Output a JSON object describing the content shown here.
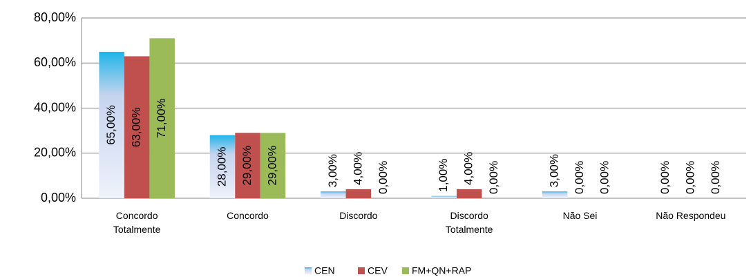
{
  "chart_data": {
    "type": "bar",
    "categories": [
      "Concordo\nTotalmente",
      "Concordo",
      "Discordo",
      "Discordo\nTotalmente",
      "Não Sei",
      "Não Respondeu"
    ],
    "series": [
      {
        "name": "CEN",
        "color": "#1fb5ea",
        "values": [
          65,
          28,
          3,
          1,
          3,
          0
        ],
        "value_labels": [
          "65,00%",
          "28,00%",
          "3,00%",
          "1,00%",
          "3,00%",
          "0,00%"
        ]
      },
      {
        "name": "CEV",
        "color": "#c0504d",
        "values": [
          63,
          29,
          4,
          4,
          0,
          0
        ],
        "value_labels": [
          "63,00%",
          "29,00%",
          "4,00%",
          "4,00%",
          "0,00%",
          "0,00%"
        ]
      },
      {
        "name": "FM+QN+RAP",
        "color": "#9bbb59",
        "values": [
          71,
          29,
          0,
          0,
          0,
          0
        ],
        "value_labels": [
          "71,00%",
          "29,00%",
          "0,00%",
          "0,00%",
          "0,00%",
          "0,00%"
        ]
      }
    ],
    "ylim": [
      0,
      80
    ],
    "yticks": [
      {
        "value": 0,
        "label": "0,00%"
      },
      {
        "value": 20,
        "label": "20,00%"
      },
      {
        "value": 40,
        "label": "40,00%"
      },
      {
        "value": 60,
        "label": "60,00%"
      },
      {
        "value": 80,
        "label": "80,00%"
      }
    ],
    "grid": true,
    "legend": "bottom"
  }
}
